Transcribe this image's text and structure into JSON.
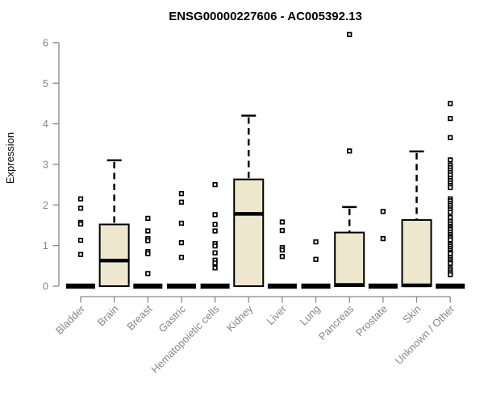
{
  "title": "ENSG00000227606 - AC005392.13",
  "colors": {
    "box_fill": "#EDE8CD",
    "box_stroke": "#000000",
    "median": "#000000",
    "whisker": "#000000",
    "outlier_stroke": "#000000",
    "axis": "#878787",
    "title_text": "#000000",
    "background": "#ffffff"
  },
  "chart_data": {
    "type": "boxplot",
    "title": "ENSG00000227606 - AC005392.13",
    "xlabel": "",
    "ylabel": "Expression",
    "ylim": [
      0,
      6
    ],
    "yticks": [
      0,
      1,
      2,
      3,
      4,
      5,
      6
    ],
    "grid": false,
    "legend": "none",
    "categories": [
      "Bladder",
      "Brain",
      "Breast",
      "Gastric",
      "Hematopoietic cells",
      "Kidney",
      "Liver",
      "Lung",
      "Pancreas",
      "Prostate",
      "Skin",
      "Unknown / Other"
    ],
    "boxes": [
      {
        "label": "Bladder",
        "q1": 0,
        "median": 0,
        "q3": 0,
        "whisker_low": 0,
        "whisker_high": 0,
        "outliers": [
          2.15,
          1.92,
          1.57,
          1.53,
          1.13,
          0.78
        ]
      },
      {
        "label": "Brain",
        "q1": 0,
        "median": 0.63,
        "q3": 1.52,
        "whisker_low": 0,
        "whisker_high": 3.1,
        "outliers": []
      },
      {
        "label": "Breast",
        "q1": 0,
        "median": 0,
        "q3": 0,
        "whisker_low": 0,
        "whisker_high": 0,
        "outliers": [
          1.67,
          1.36,
          1.17,
          1.12,
          0.85,
          0.8,
          0.31
        ]
      },
      {
        "label": "Gastric",
        "q1": 0,
        "median": 0,
        "q3": 0,
        "whisker_low": 0,
        "whisker_high": 0,
        "outliers": [
          2.28,
          2.07,
          1.55,
          1.07,
          0.71
        ]
      },
      {
        "label": "Hematopoietic cells",
        "q1": 0,
        "median": 0,
        "q3": 0,
        "whisker_low": 0,
        "whisker_high": 0,
        "outliers": [
          2.5,
          1.76,
          1.52,
          1.36,
          1.05,
          0.99,
          0.82,
          0.64,
          0.57,
          0.45
        ]
      },
      {
        "label": "Kidney",
        "q1": 0,
        "median": 1.78,
        "q3": 2.63,
        "whisker_low": 0,
        "whisker_high": 4.2,
        "outliers": []
      },
      {
        "label": "Liver",
        "q1": 0,
        "median": 0,
        "q3": 0,
        "whisker_low": 0,
        "whisker_high": 0,
        "outliers": [
          1.58,
          1.37,
          0.95,
          0.89,
          0.73
        ]
      },
      {
        "label": "Lung",
        "q1": 0,
        "median": 0,
        "q3": 0,
        "whisker_low": 0,
        "whisker_high": 0,
        "outliers": [
          1.09,
          0.66
        ]
      },
      {
        "label": "Pancreas",
        "q1": 0,
        "median": 0.03,
        "q3": 1.32,
        "whisker_low": 0,
        "whisker_high": 1.95,
        "outliers": [
          6.2,
          3.33
        ]
      },
      {
        "label": "Prostate",
        "q1": 0,
        "median": 0,
        "q3": 0,
        "whisker_low": 0,
        "whisker_high": 0,
        "outliers": [
          1.84,
          1.17
        ]
      },
      {
        "label": "Skin",
        "q1": 0,
        "median": 0.02,
        "q3": 1.63,
        "whisker_low": 0,
        "whisker_high": 3.32,
        "outliers": []
      },
      {
        "label": "Unknown / Other",
        "q1": 0,
        "median": 0,
        "q3": 0,
        "whisker_low": 0,
        "whisker_high": 0,
        "outliers": [
          4.5,
          4.13,
          3.66,
          3.11,
          2.98,
          2.92,
          2.86,
          2.8,
          2.74,
          2.66,
          2.6,
          2.54,
          2.48,
          2.43,
          2.15,
          2.1,
          2.04,
          1.99,
          1.93,
          1.88,
          1.82,
          1.69,
          1.59,
          1.53,
          1.47,
          1.43,
          1.39,
          1.33,
          1.27,
          1.22,
          1.19,
          1.14,
          1.03,
          0.98,
          0.93,
          0.88,
          0.83,
          0.8,
          0.7,
          0.65,
          0.6,
          0.56,
          0.43,
          0.38,
          0.33,
          0.28
        ]
      }
    ]
  }
}
